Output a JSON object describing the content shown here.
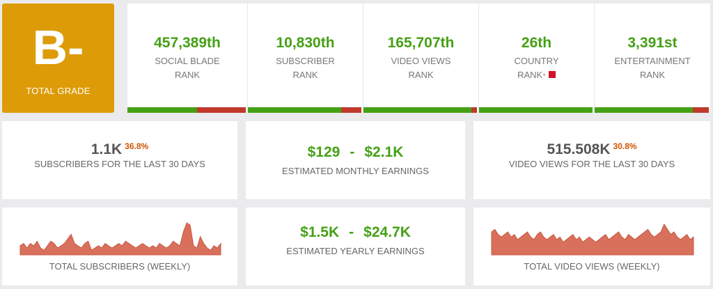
{
  "grade": {
    "letter": "B-",
    "label": "TOTAL GRADE"
  },
  "ranks": [
    {
      "value": "457,389th",
      "line1": "SOCIAL BLADE",
      "line2": "RANK",
      "bar_fraction": 0.59
    },
    {
      "value": "10,830th",
      "line1": "SUBSCRIBER",
      "line2": "RANK",
      "bar_fraction": 0.82
    },
    {
      "value": "165,707th",
      "line1": "VIDEO VIEWS",
      "line2": "RANK",
      "bar_fraction": 0.95
    },
    {
      "value": "26th",
      "line1": "COUNTRY",
      "line2": "RANK",
      "bar_fraction": 1.0
    },
    {
      "value": "3,391st",
      "line1": "ENTERTAINMENT",
      "line2": "RANK",
      "bar_fraction": 0.86
    }
  ],
  "stats": {
    "subscribers_30": {
      "value": "1.1K",
      "pct": "36.8%",
      "label": "SUBSCRIBERS FOR THE LAST 30 DAYS"
    },
    "monthly": {
      "low": "$129",
      "dash": "-",
      "high": "$2.1K",
      "label": "ESTIMATED MONTHLY EARNINGS"
    },
    "views_30": {
      "value": "515.508K",
      "pct": "30.8%",
      "label": "VIDEO VIEWS FOR THE LAST 30 DAYS"
    },
    "yearly": {
      "low": "$1.5K",
      "dash": "-",
      "high": "$24.7K",
      "label": "ESTIMATED YEARLY EARNINGS"
    }
  },
  "sparklines": {
    "subscribers": {
      "label": "TOTAL SUBSCRIBERS (WEEKLY)",
      "color": "#d9705b",
      "values": [
        4,
        5,
        3,
        5,
        4,
        6,
        3,
        2,
        4,
        6,
        5,
        3,
        4,
        5,
        7,
        9,
        5,
        4,
        3,
        5,
        6,
        2,
        3,
        4,
        3,
        5,
        4,
        3,
        4,
        5,
        4,
        6,
        5,
        4,
        3,
        4,
        5,
        4,
        3,
        4,
        3,
        5,
        4,
        3,
        4,
        6,
        5,
        4,
        10,
        14,
        13,
        4,
        3,
        8,
        5,
        3,
        2,
        4,
        3,
        5
      ]
    },
    "views": {
      "label": "TOTAL VIDEO VIEWS (WEEKLY)",
      "color": "#d9705b",
      "values": [
        9,
        10,
        8,
        7,
        8,
        9,
        7,
        8,
        6,
        7,
        8,
        9,
        7,
        6,
        8,
        9,
        7,
        6,
        7,
        8,
        6,
        7,
        5,
        6,
        7,
        8,
        6,
        7,
        5,
        6,
        7,
        6,
        5,
        6,
        7,
        8,
        6,
        7,
        8,
        9,
        7,
        6,
        8,
        7,
        6,
        7,
        8,
        9,
        10,
        8,
        7,
        8,
        9,
        12,
        10,
        8,
        9,
        7,
        6,
        7,
        8,
        6,
        7
      ]
    }
  }
}
